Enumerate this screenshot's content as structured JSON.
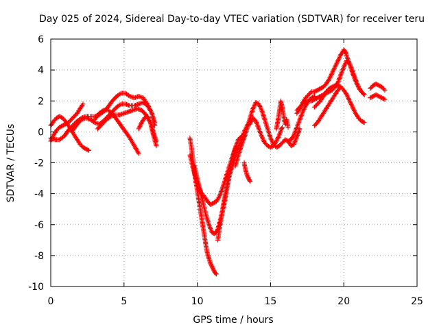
{
  "chart_data": {
    "type": "scatter",
    "title": "Day 025 of 2024, Sidereal Day-to-day VTEC variation (SDTVAR) for receiver teru",
    "xlabel": "GPS time / hours",
    "ylabel": "SDTVAR / TECUs",
    "xlim": [
      0,
      25
    ],
    "ylim": [
      -10,
      6
    ],
    "xticks": [
      0,
      5,
      10,
      15,
      20,
      25
    ],
    "yticks": [
      -10,
      -8,
      -6,
      -4,
      -2,
      0,
      2,
      4,
      6
    ],
    "grid": true,
    "marker": "+",
    "series_color": "#ff0000",
    "series": [
      {
        "x": [
          0.0,
          0.2,
          0.4,
          0.6,
          0.8,
          1.0,
          1.2,
          1.4,
          1.6,
          1.8,
          2.0,
          2.2
        ],
        "y": [
          -0.6,
          -0.2,
          0.1,
          0.3,
          0.4,
          0.5,
          0.6,
          0.8,
          1.0,
          1.2,
          1.5,
          1.8
        ]
      },
      {
        "x": [
          0.0,
          0.2,
          0.4,
          0.6,
          0.8,
          1.0,
          1.2,
          1.4,
          1.6,
          1.8,
          2.0,
          2.2,
          2.4,
          2.6
        ],
        "y": [
          0.4,
          0.7,
          0.9,
          1.0,
          0.9,
          0.7,
          0.4,
          0.1,
          -0.2,
          -0.5,
          -0.8,
          -1.0,
          -1.1,
          -1.2
        ]
      },
      {
        "x": [
          0.0,
          0.3,
          0.6,
          0.9,
          1.2,
          1.5,
          1.8,
          2.1,
          2.4,
          2.7,
          3.0,
          3.3,
          3.6,
          3.9,
          4.2,
          4.5,
          4.8,
          5.1,
          5.4,
          5.7,
          6.0,
          6.3,
          6.6,
          6.9,
          7.1
        ],
        "y": [
          -0.4,
          -0.5,
          -0.5,
          -0.3,
          0.1,
          0.4,
          0.7,
          0.9,
          1.0,
          1.0,
          1.0,
          1.1,
          1.3,
          1.6,
          2.0,
          2.3,
          2.5,
          2.5,
          2.3,
          2.2,
          2.3,
          2.2,
          1.8,
          1.2,
          0.4
        ]
      },
      {
        "x": [
          1.5,
          1.8,
          2.1,
          2.4,
          2.7,
          3.0,
          3.3,
          3.6,
          3.9,
          4.2,
          4.5,
          4.8,
          5.1,
          5.4,
          5.7,
          6.0,
          6.3,
          6.6,
          6.9,
          7.1
        ],
        "y": [
          0.1,
          0.5,
          0.8,
          0.9,
          0.8,
          0.6,
          0.5,
          0.7,
          1.0,
          1.3,
          1.6,
          1.8,
          1.8,
          1.7,
          1.7,
          1.8,
          1.9,
          1.7,
          1.2,
          0.6
        ]
      },
      {
        "x": [
          3.0,
          3.3,
          3.6,
          3.9,
          4.2,
          4.5,
          4.8,
          5.1,
          5.4,
          5.7,
          6.0
        ],
        "y": [
          0.8,
          1.2,
          1.4,
          1.4,
          1.2,
          0.8,
          0.4,
          0.0,
          -0.4,
          -0.9,
          -1.4
        ]
      },
      {
        "x": [
          3.2,
          3.5,
          3.8,
          4.1,
          4.4,
          4.7,
          5.0,
          5.3,
          5.6,
          5.9,
          6.2,
          6.5,
          6.8,
          7.0,
          7.2
        ],
        "y": [
          0.2,
          0.5,
          0.8,
          1.0,
          1.1,
          1.1,
          1.2,
          1.3,
          1.4,
          1.5,
          1.4,
          1.1,
          0.6,
          0.0,
          -0.6
        ]
      },
      {
        "x": [
          6.0,
          6.2,
          6.4,
          6.6,
          6.8,
          7.0,
          7.2
        ],
        "y": [
          0.2,
          0.6,
          0.9,
          1.0,
          0.6,
          -0.2,
          -0.9
        ]
      },
      {
        "x": [
          9.5,
          9.6,
          9.7,
          9.8,
          9.9,
          10.0,
          10.1,
          10.2,
          10.3,
          10.4,
          10.5,
          10.6,
          10.7,
          10.8,
          10.9,
          11.0,
          11.1,
          11.2,
          11.3
        ],
        "y": [
          -0.4,
          -1.0,
          -1.8,
          -2.6,
          -3.2,
          -3.8,
          -4.4,
          -5.0,
          -5.6,
          -6.2,
          -6.8,
          -7.4,
          -7.9,
          -8.2,
          -8.5,
          -8.7,
          -8.9,
          -9.1,
          -9.2
        ]
      },
      {
        "x": [
          9.5,
          9.7,
          9.9,
          10.1,
          10.3,
          10.5,
          10.7,
          10.9,
          11.1,
          11.3,
          11.5,
          11.7,
          11.9,
          12.1,
          12.3,
          12.5,
          12.7
        ],
        "y": [
          -1.5,
          -2.3,
          -3.0,
          -3.6,
          -4.0,
          -4.2,
          -4.5,
          -4.7,
          -4.6,
          -4.5,
          -4.2,
          -3.7,
          -3.1,
          -2.5,
          -1.9,
          -1.3,
          -0.9
        ]
      },
      {
        "x": [
          9.8,
          10.0,
          10.2,
          10.4,
          10.6,
          10.8,
          11.0,
          11.2,
          11.4,
          11.6,
          11.8,
          12.0,
          12.2,
          12.4,
          12.6,
          12.8,
          13.0,
          13.2
        ],
        "y": [
          -2.2,
          -3.0,
          -3.8,
          -4.6,
          -5.4,
          -6.0,
          -6.5,
          -6.6,
          -6.3,
          -5.6,
          -4.8,
          -3.8,
          -2.8,
          -1.8,
          -1.0,
          -0.5,
          -0.3,
          -0.4
        ]
      },
      {
        "x": [
          11.4,
          11.6,
          11.8,
          12.0,
          12.2,
          12.4,
          12.6,
          12.8,
          13.0,
          13.2,
          13.4,
          13.6,
          13.8
        ],
        "y": [
          -7.0,
          -5.8,
          -4.6,
          -3.6,
          -2.8,
          -2.2,
          -1.6,
          -1.0,
          -0.5,
          0.0,
          0.4,
          0.7,
          0.9
        ]
      },
      {
        "x": [
          12.6,
          12.8,
          13.0,
          13.2,
          13.4,
          13.6,
          13.8,
          14.0,
          14.2,
          14.4,
          14.6,
          14.8,
          15.0,
          15.2,
          15.4,
          15.6,
          15.8,
          16.0,
          16.2,
          16.4,
          16.6,
          16.8,
          17.0
        ],
        "y": [
          -2.2,
          -1.5,
          -0.9,
          -0.4,
          0.2,
          0.9,
          1.5,
          1.9,
          1.8,
          1.4,
          0.8,
          0.2,
          -0.4,
          -0.8,
          -1.0,
          -0.9,
          -0.7,
          -0.5,
          -0.6,
          -0.9,
          -0.8,
          -0.3,
          0.2
        ]
      },
      {
        "x": [
          13.2,
          13.3,
          13.4,
          13.5,
          13.6
        ],
        "y": [
          -2.0,
          -2.5,
          -2.8,
          -3.0,
          -3.2
        ]
      },
      {
        "x": [
          13.6,
          13.8,
          14.0,
          14.2,
          14.4,
          14.6,
          14.8,
          15.0,
          15.2,
          15.4,
          15.6,
          15.8
        ],
        "y": [
          0.5,
          0.9,
          0.7,
          0.2,
          -0.3,
          -0.7,
          -0.9,
          -1.0,
          -0.9,
          -0.6,
          -0.2,
          0.3
        ]
      },
      {
        "x": [
          15.4,
          15.5,
          15.6,
          15.7,
          15.8,
          15.9,
          16.0,
          16.1,
          16.2
        ],
        "y": [
          0.2,
          0.7,
          1.3,
          2.0,
          1.6,
          1.0,
          0.5,
          0.8,
          0.3
        ]
      },
      {
        "x": [
          16.8,
          17.0,
          17.2,
          17.4,
          17.6,
          17.8,
          18.0,
          18.2,
          18.4,
          18.6,
          18.8,
          19.0,
          19.2,
          19.4,
          19.6,
          19.8,
          20.0,
          20.1,
          20.2,
          20.4,
          20.6,
          20.8,
          21.0,
          21.2,
          21.4
        ],
        "y": [
          1.2,
          1.5,
          1.9,
          2.2,
          2.4,
          2.6,
          2.6,
          2.7,
          2.8,
          2.9,
          3.1,
          3.4,
          3.8,
          4.2,
          4.6,
          5.0,
          5.3,
          5.2,
          4.9,
          4.4,
          3.8,
          3.3,
          2.9,
          2.6,
          2.4
        ]
      },
      {
        "x": [
          16.8,
          17.0,
          17.2,
          17.4,
          17.6,
          17.8,
          18.0,
          18.2,
          18.4,
          18.6,
          18.8,
          19.0,
          19.2,
          19.4,
          19.6,
          19.8,
          20.0,
          20.2,
          20.4,
          20.6,
          20.8,
          21.0,
          21.2,
          21.4
        ],
        "y": [
          1.4,
          1.6,
          1.8,
          1.9,
          2.0,
          2.0,
          2.1,
          2.2,
          2.3,
          2.4,
          2.5,
          2.6,
          2.7,
          2.9,
          3.2,
          3.7,
          4.2,
          4.6,
          4.4,
          3.9,
          3.4,
          2.9,
          2.6,
          2.4
        ]
      },
      {
        "x": [
          18.0,
          18.2,
          18.4,
          18.6,
          18.8,
          19.0,
          19.2,
          19.4,
          19.6,
          19.8,
          20.0,
          20.2,
          20.4,
          20.6,
          20.8,
          21.0,
          21.2,
          21.4
        ],
        "y": [
          1.6,
          1.8,
          2.0,
          2.3,
          2.6,
          2.8,
          2.9,
          3.0,
          3.0,
          2.9,
          2.7,
          2.4,
          2.0,
          1.6,
          1.2,
          0.9,
          0.7,
          0.6
        ]
      },
      {
        "x": [
          18.0,
          18.2,
          18.4,
          18.6,
          18.8,
          19.0,
          19.2,
          19.4,
          19.6,
          19.8
        ],
        "y": [
          0.4,
          0.6,
          0.9,
          1.2,
          1.5,
          1.8,
          2.1,
          2.4,
          2.7,
          2.9
        ]
      },
      {
        "x": [
          16.2,
          16.4,
          16.6,
          16.8,
          17.0,
          17.2,
          17.4,
          17.6,
          17.8,
          18.0
        ],
        "y": [
          -0.6,
          -0.5,
          -0.2,
          0.3,
          0.8,
          1.3,
          1.7,
          2.0,
          2.2,
          2.3
        ]
      },
      {
        "x": [
          21.8,
          22.0,
          22.2,
          22.4,
          22.6,
          22.8
        ],
        "y": [
          2.8,
          3.0,
          3.1,
          3.0,
          2.9,
          2.7
        ]
      },
      {
        "x": [
          21.8,
          22.0,
          22.2,
          22.4,
          22.6,
          22.8
        ],
        "y": [
          2.2,
          2.3,
          2.4,
          2.3,
          2.2,
          2.1
        ]
      }
    ]
  }
}
